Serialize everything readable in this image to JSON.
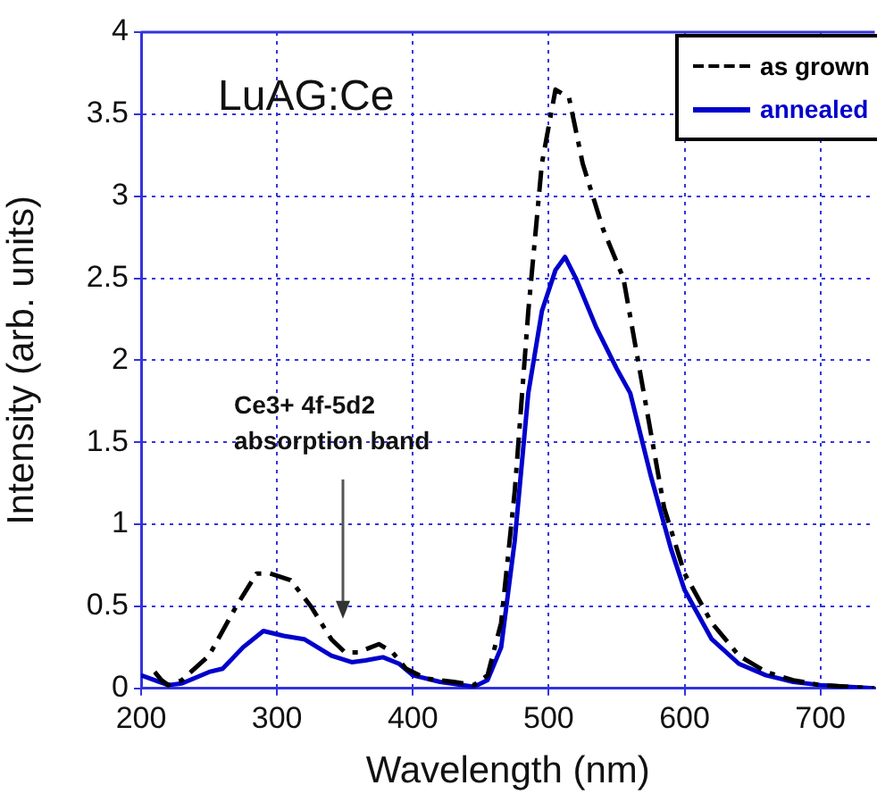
{
  "chart_data": {
    "type": "line",
    "xlabel": "Wavelength (nm)",
    "ylabel": "Intensity (arb. units)",
    "xlim": [
      200,
      740
    ],
    "xticks": [
      200,
      300,
      400,
      500,
      600,
      700
    ],
    "ylim": [
      0,
      4
    ],
    "yticks": [
      0,
      0.5,
      1,
      1.5,
      2,
      2.5,
      3,
      3.5,
      4
    ],
    "grid": true,
    "legend": "top right",
    "marker": "none",
    "annotations": [
      "LuAG:Ce",
      "Ce3+ 4f-5d2\nabsorption band"
    ],
    "series": [
      {
        "name": "as grown",
        "color": "#000000",
        "line_style": "dashed",
        "x": [
          210,
          215,
          220,
          230,
          250,
          270,
          285,
          295,
          310,
          325,
          340,
          350,
          360,
          375,
          385,
          395,
          410,
          430,
          445,
          455,
          465,
          475,
          485,
          495,
          505,
          515,
          525,
          540,
          555,
          570,
          585,
          600,
          620,
          640,
          660,
          680,
          700,
          720,
          740
        ],
        "values": [
          0.1,
          0.05,
          0.02,
          0.05,
          0.2,
          0.5,
          0.7,
          0.7,
          0.66,
          0.5,
          0.3,
          0.22,
          0.22,
          0.27,
          0.22,
          0.12,
          0.06,
          0.04,
          0.02,
          0.08,
          0.4,
          1.2,
          2.3,
          3.2,
          3.65,
          3.6,
          3.2,
          2.8,
          2.5,
          1.8,
          1.1,
          0.7,
          0.4,
          0.2,
          0.1,
          0.05,
          0.02,
          0.01,
          0
        ]
      },
      {
        "name": "annealed",
        "color": "#0000cc",
        "line_style": "solid",
        "x": [
          200,
          210,
          220,
          230,
          250,
          260,
          275,
          290,
          305,
          320,
          340,
          355,
          365,
          378,
          390,
          400,
          420,
          445,
          455,
          465,
          475,
          485,
          495,
          505,
          512,
          520,
          535,
          550,
          560,
          575,
          590,
          600,
          620,
          640,
          660,
          680,
          700,
          740
        ],
        "values": [
          0.08,
          0.05,
          0.02,
          0.03,
          0.1,
          0.12,
          0.25,
          0.35,
          0.32,
          0.3,
          0.2,
          0.16,
          0.17,
          0.19,
          0.15,
          0.08,
          0.04,
          0.01,
          0.05,
          0.25,
          0.9,
          1.8,
          2.3,
          2.55,
          2.63,
          2.5,
          2.2,
          1.95,
          1.8,
          1.3,
          0.85,
          0.6,
          0.3,
          0.15,
          0.08,
          0.04,
          0.02,
          0
        ]
      }
    ]
  }
}
